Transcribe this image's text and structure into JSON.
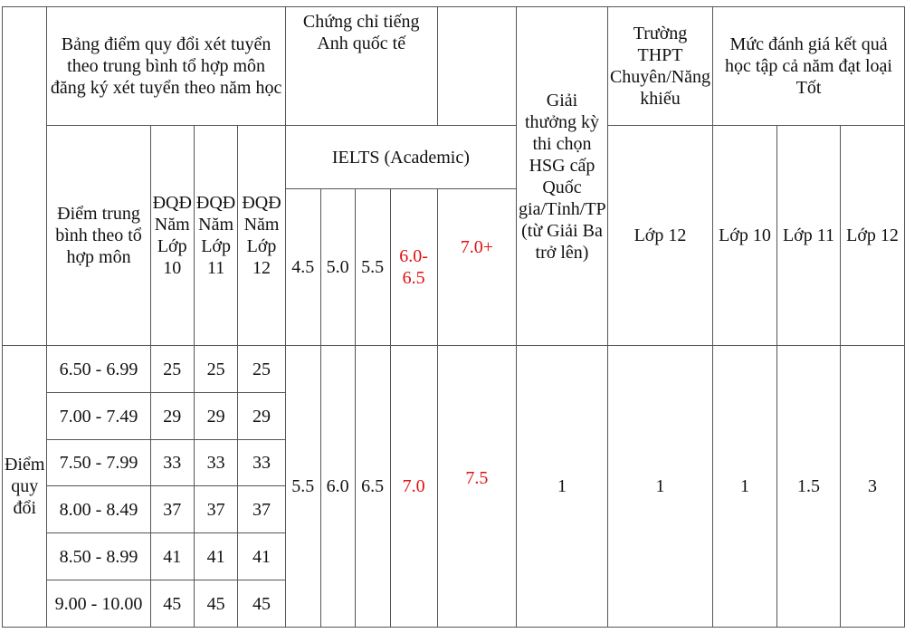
{
  "header": {
    "rank_col": "",
    "conversion_group": "Bảng điểm quy đổi xét tuyển theo trung bình tổ hợp môn đăng ký xét tuyển theo năm học",
    "cert_group": "Chứng chỉ tiếng Anh quốc tế",
    "cert_extra": "",
    "award": "Giải thưởng kỳ thi chọn HSG cấp Quốc gia/Tỉnh/TP (từ Giải Ba trở lên)",
    "specialized_school": "Trường THPT Chuyên/Năng khiếu",
    "rating_group": "Mức đánh giá kết quả học tập cả năm đạt loại Tốt",
    "avg_score": "Điểm trung bình theo tổ hợp môn",
    "dqd_10": "ĐQĐ Năm Lớp 10",
    "dqd_11": "ĐQĐ Năm Lớp 11",
    "dqd_12": "ĐQĐ Năm Lớp 12",
    "ielts": "IELTS (Academic)",
    "ielts_levels": [
      "4.5",
      "5.0",
      "5.5",
      "6.0-6.5",
      "7.0+"
    ],
    "school_grade": "Lớp 12",
    "rating_grades": [
      "Lớp 10",
      "Lớp 11",
      "Lớp 12"
    ]
  },
  "body": {
    "row_label": "Điểm quy đổi",
    "rows": [
      {
        "range": "6.50 - 6.99",
        "g10": "25",
        "g11": "25",
        "g12": "25"
      },
      {
        "range": "7.00 - 7.49",
        "g10": "29",
        "g11": "29",
        "g12": "29"
      },
      {
        "range": "7.50 - 7.99",
        "g10": "33",
        "g11": "33",
        "g12": "33"
      },
      {
        "range": "8.00 - 8.49",
        "g10": "37",
        "g11": "37",
        "g12": "37"
      },
      {
        "range": "8.50 - 8.99",
        "g10": "41",
        "g11": "41",
        "g12": "41"
      },
      {
        "range": "9.00 - 10.00",
        "g10": "45",
        "g11": "45",
        "g12": "45"
      }
    ],
    "ielts_points": [
      "5.5",
      "6.0",
      "6.5",
      "7.0",
      "7.5"
    ],
    "award_points": "1",
    "school_points": "1",
    "rating_points": [
      "1",
      "1.5",
      "3"
    ]
  },
  "colors": {
    "highlight": "#e01010",
    "border": "#555555"
  }
}
